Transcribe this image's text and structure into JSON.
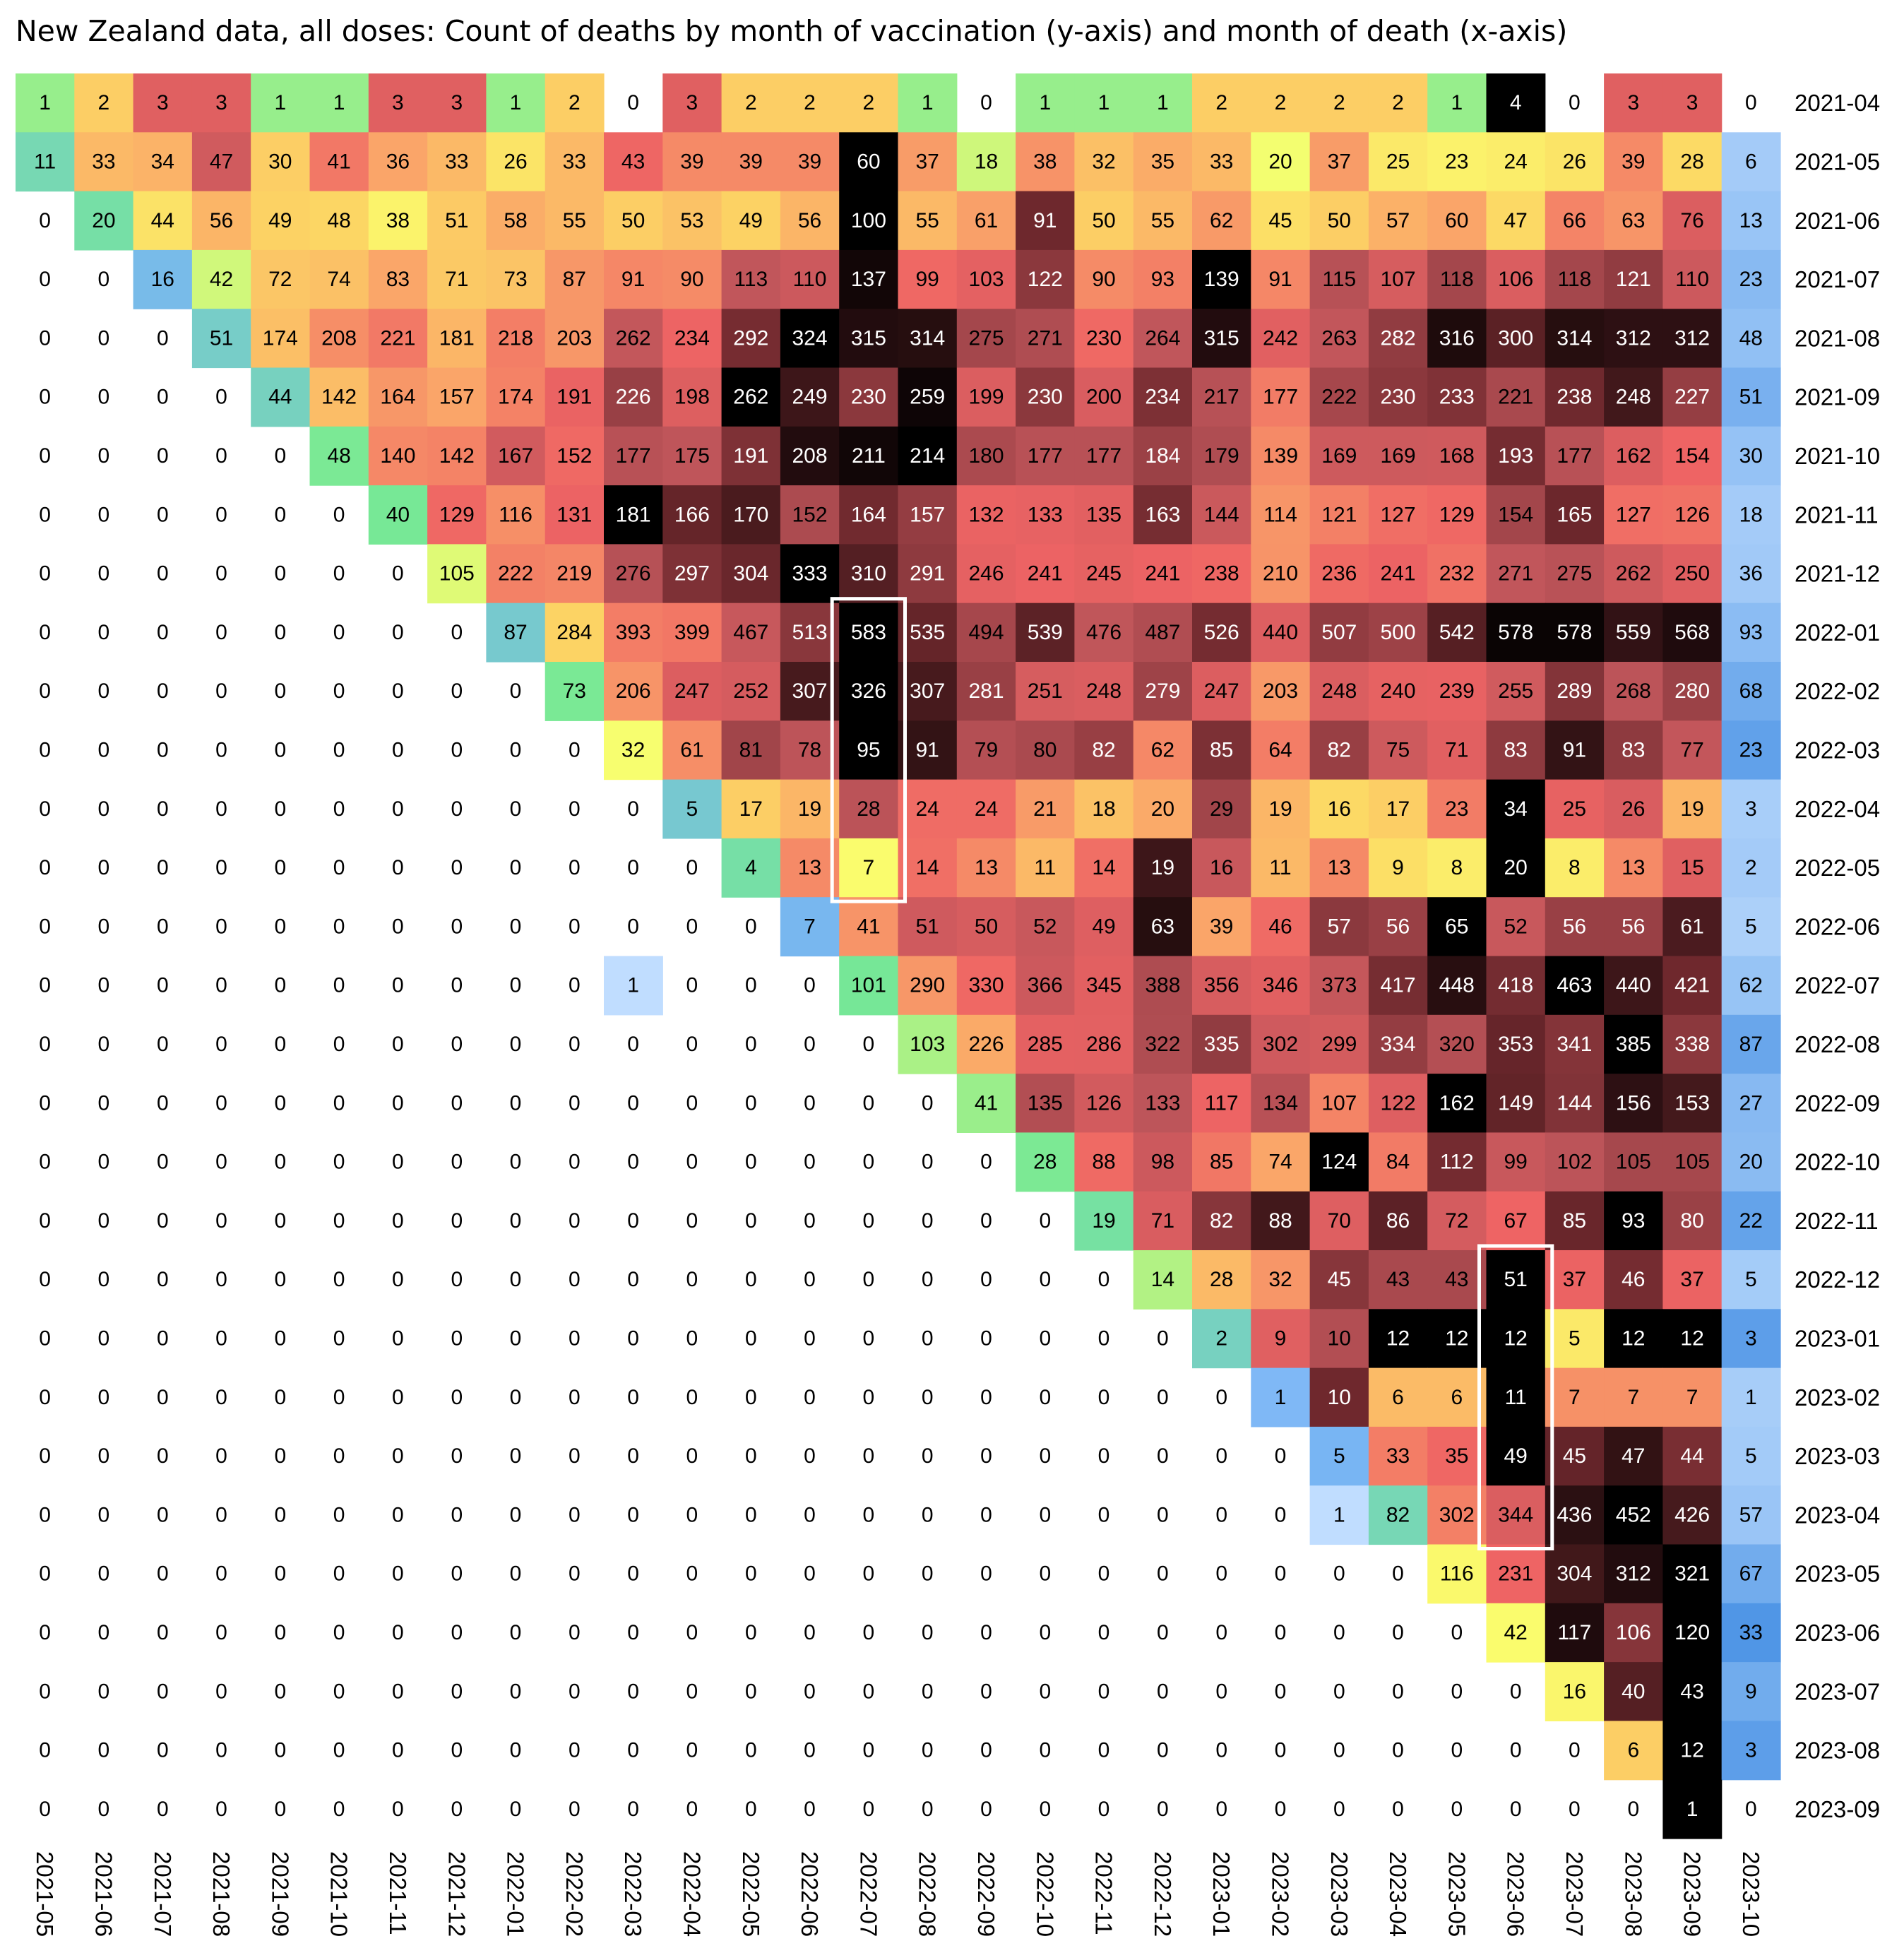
{
  "chart_data": {
    "type": "heatmap",
    "title": "New Zealand data, all doses: Count of deaths by month of vaccination (y-axis) and month of death (x-axis)",
    "xlabel": "month of death",
    "ylabel": "month of vaccination",
    "x_categories": [
      "2021-05",
      "2021-06",
      "2021-07",
      "2021-08",
      "2021-09",
      "2021-10",
      "2021-11",
      "2021-12",
      "2022-01",
      "2022-02",
      "2022-03",
      "2022-04",
      "2022-05",
      "2022-06",
      "2022-07",
      "2022-08",
      "2022-09",
      "2022-10",
      "2022-11",
      "2022-12",
      "2023-01",
      "2023-02",
      "2023-03",
      "2023-04",
      "2023-05",
      "2023-06",
      "2023-07",
      "2023-08",
      "2023-09",
      "2023-10"
    ],
    "y_categories": [
      "2021-04",
      "2021-05",
      "2021-06",
      "2021-07",
      "2021-08",
      "2021-09",
      "2021-10",
      "2021-11",
      "2021-12",
      "2022-01",
      "2022-02",
      "2022-03",
      "2022-04",
      "2022-05",
      "2022-06",
      "2022-07",
      "2022-08",
      "2022-09",
      "2022-10",
      "2022-11",
      "2022-12",
      "2023-01",
      "2023-02",
      "2023-03",
      "2023-04",
      "2023-05",
      "2023-06",
      "2023-07",
      "2023-08",
      "2023-09"
    ],
    "values": [
      [
        1,
        2,
        3,
        3,
        1,
        1,
        3,
        3,
        1,
        2,
        0,
        3,
        2,
        2,
        2,
        1,
        0,
        1,
        1,
        1,
        2,
        2,
        2,
        2,
        1,
        4,
        0,
        3,
        3,
        0
      ],
      [
        11,
        33,
        34,
        47,
        30,
        41,
        36,
        33,
        26,
        33,
        43,
        39,
        39,
        39,
        60,
        37,
        18,
        38,
        32,
        35,
        33,
        20,
        37,
        25,
        23,
        24,
        26,
        39,
        28,
        6
      ],
      [
        0,
        20,
        44,
        56,
        49,
        48,
        38,
        51,
        58,
        55,
        50,
        53,
        49,
        56,
        100,
        55,
        61,
        91,
        50,
        55,
        62,
        45,
        50,
        57,
        60,
        47,
        66,
        63,
        76,
        13
      ],
      [
        0,
        0,
        16,
        42,
        72,
        74,
        83,
        71,
        73,
        87,
        91,
        90,
        113,
        110,
        137,
        99,
        103,
        122,
        90,
        93,
        139,
        91,
        115,
        107,
        118,
        106,
        118,
        121,
        110,
        23
      ],
      [
        0,
        0,
        0,
        51,
        174,
        208,
        221,
        181,
        218,
        203,
        262,
        234,
        292,
        324,
        315,
        314,
        275,
        271,
        230,
        264,
        315,
        242,
        263,
        282,
        316,
        300,
        314,
        312,
        312,
        48
      ],
      [
        0,
        0,
        0,
        0,
        44,
        142,
        164,
        157,
        174,
        191,
        226,
        198,
        262,
        249,
        230,
        259,
        199,
        230,
        200,
        234,
        217,
        177,
        222,
        230,
        233,
        221,
        238,
        248,
        227,
        51
      ],
      [
        0,
        0,
        0,
        0,
        0,
        48,
        140,
        142,
        167,
        152,
        177,
        175,
        191,
        208,
        211,
        214,
        180,
        177,
        177,
        184,
        179,
        139,
        169,
        169,
        168,
        193,
        177,
        162,
        154,
        30
      ],
      [
        0,
        0,
        0,
        0,
        0,
        0,
        40,
        129,
        116,
        131,
        181,
        166,
        170,
        152,
        164,
        157,
        132,
        133,
        135,
        163,
        144,
        114,
        121,
        127,
        129,
        154,
        165,
        127,
        126,
        18
      ],
      [
        0,
        0,
        0,
        0,
        0,
        0,
        0,
        105,
        222,
        219,
        276,
        297,
        304,
        333,
        310,
        291,
        246,
        241,
        245,
        241,
        238,
        210,
        236,
        241,
        232,
        271,
        275,
        262,
        250,
        36
      ],
      [
        0,
        0,
        0,
        0,
        0,
        0,
        0,
        0,
        87,
        284,
        393,
        399,
        467,
        513,
        583,
        535,
        494,
        539,
        476,
        487,
        526,
        440,
        507,
        500,
        542,
        578,
        578,
        559,
        568,
        93
      ],
      [
        0,
        0,
        0,
        0,
        0,
        0,
        0,
        0,
        0,
        73,
        206,
        247,
        252,
        307,
        326,
        307,
        281,
        251,
        248,
        279,
        247,
        203,
        248,
        240,
        239,
        255,
        289,
        268,
        280,
        68
      ],
      [
        0,
        0,
        0,
        0,
        0,
        0,
        0,
        0,
        0,
        0,
        32,
        61,
        81,
        78,
        95,
        91,
        79,
        80,
        82,
        62,
        85,
        64,
        82,
        75,
        71,
        83,
        91,
        83,
        77,
        23
      ],
      [
        0,
        0,
        0,
        0,
        0,
        0,
        0,
        0,
        0,
        0,
        0,
        5,
        17,
        19,
        28,
        24,
        24,
        21,
        18,
        20,
        29,
        19,
        16,
        17,
        23,
        34,
        25,
        26,
        19,
        3
      ],
      [
        0,
        0,
        0,
        0,
        0,
        0,
        0,
        0,
        0,
        0,
        0,
        0,
        4,
        13,
        7,
        14,
        13,
        11,
        14,
        19,
        16,
        11,
        13,
        9,
        8,
        20,
        8,
        13,
        15,
        2
      ],
      [
        0,
        0,
        0,
        0,
        0,
        0,
        0,
        0,
        0,
        0,
        0,
        0,
        0,
        7,
        41,
        51,
        50,
        52,
        49,
        63,
        39,
        46,
        57,
        56,
        65,
        52,
        56,
        56,
        61,
        5
      ],
      [
        0,
        0,
        0,
        0,
        0,
        0,
        0,
        0,
        0,
        0,
        1,
        0,
        0,
        0,
        101,
        290,
        330,
        366,
        345,
        388,
        356,
        346,
        373,
        417,
        448,
        418,
        463,
        440,
        421,
        62
      ],
      [
        0,
        0,
        0,
        0,
        0,
        0,
        0,
        0,
        0,
        0,
        0,
        0,
        0,
        0,
        0,
        103,
        226,
        285,
        286,
        322,
        335,
        302,
        299,
        334,
        320,
        353,
        341,
        385,
        338,
        87
      ],
      [
        0,
        0,
        0,
        0,
        0,
        0,
        0,
        0,
        0,
        0,
        0,
        0,
        0,
        0,
        0,
        0,
        41,
        135,
        126,
        133,
        117,
        134,
        107,
        122,
        162,
        149,
        144,
        156,
        153,
        27
      ],
      [
        0,
        0,
        0,
        0,
        0,
        0,
        0,
        0,
        0,
        0,
        0,
        0,
        0,
        0,
        0,
        0,
        0,
        28,
        88,
        98,
        85,
        74,
        124,
        84,
        112,
        99,
        102,
        105,
        105,
        20
      ],
      [
        0,
        0,
        0,
        0,
        0,
        0,
        0,
        0,
        0,
        0,
        0,
        0,
        0,
        0,
        0,
        0,
        0,
        0,
        19,
        71,
        82,
        88,
        70,
        86,
        72,
        67,
        85,
        93,
        80,
        22
      ],
      [
        0,
        0,
        0,
        0,
        0,
        0,
        0,
        0,
        0,
        0,
        0,
        0,
        0,
        0,
        0,
        0,
        0,
        0,
        0,
        14,
        28,
        32,
        45,
        43,
        43,
        51,
        37,
        46,
        37,
        5
      ],
      [
        0,
        0,
        0,
        0,
        0,
        0,
        0,
        0,
        0,
        0,
        0,
        0,
        0,
        0,
        0,
        0,
        0,
        0,
        0,
        0,
        2,
        9,
        10,
        12,
        12,
        12,
        5,
        12,
        12,
        3
      ],
      [
        0,
        0,
        0,
        0,
        0,
        0,
        0,
        0,
        0,
        0,
        0,
        0,
        0,
        0,
        0,
        0,
        0,
        0,
        0,
        0,
        0,
        1,
        10,
        6,
        6,
        11,
        7,
        7,
        7,
        1
      ],
      [
        0,
        0,
        0,
        0,
        0,
        0,
        0,
        0,
        0,
        0,
        0,
        0,
        0,
        0,
        0,
        0,
        0,
        0,
        0,
        0,
        0,
        0,
        5,
        33,
        35,
        49,
        45,
        47,
        44,
        5
      ],
      [
        0,
        0,
        0,
        0,
        0,
        0,
        0,
        0,
        0,
        0,
        0,
        0,
        0,
        0,
        0,
        0,
        0,
        0,
        0,
        0,
        0,
        0,
        1,
        82,
        302,
        344,
        436,
        452,
        426,
        57
      ],
      [
        0,
        0,
        0,
        0,
        0,
        0,
        0,
        0,
        0,
        0,
        0,
        0,
        0,
        0,
        0,
        0,
        0,
        0,
        0,
        0,
        0,
        0,
        0,
        0,
        116,
        231,
        304,
        312,
        321,
        67
      ],
      [
        0,
        0,
        0,
        0,
        0,
        0,
        0,
        0,
        0,
        0,
        0,
        0,
        0,
        0,
        0,
        0,
        0,
        0,
        0,
        0,
        0,
        0,
        0,
        0,
        0,
        42,
        117,
        106,
        120,
        33
      ],
      [
        0,
        0,
        0,
        0,
        0,
        0,
        0,
        0,
        0,
        0,
        0,
        0,
        0,
        0,
        0,
        0,
        0,
        0,
        0,
        0,
        0,
        0,
        0,
        0,
        0,
        0,
        16,
        40,
        43,
        9
      ],
      [
        0,
        0,
        0,
        0,
        0,
        0,
        0,
        0,
        0,
        0,
        0,
        0,
        0,
        0,
        0,
        0,
        0,
        0,
        0,
        0,
        0,
        0,
        0,
        0,
        0,
        0,
        0,
        6,
        12,
        3
      ],
      [
        0,
        0,
        0,
        0,
        0,
        0,
        0,
        0,
        0,
        0,
        0,
        0,
        0,
        0,
        0,
        0,
        0,
        0,
        0,
        0,
        0,
        0,
        0,
        0,
        0,
        0,
        0,
        0,
        1,
        0
      ]
    ],
    "color_scale": "per-row, relative to the row maximum: light blue (low) to blue, green, yellow, orange, red, dark red, black (highest)",
    "last_column_color_scale": "separate blue scale",
    "highlight_boxes": [
      {
        "x_from": "2022-07",
        "x_to": "2022-07",
        "y_from": "2022-01",
        "y_to": "2022-05",
        "color": "#ffffff"
      },
      {
        "x_from": "2023-06",
        "x_to": "2023-06",
        "y_from": "2022-12",
        "y_to": "2023-04",
        "color": "#ffffff"
      }
    ]
  }
}
